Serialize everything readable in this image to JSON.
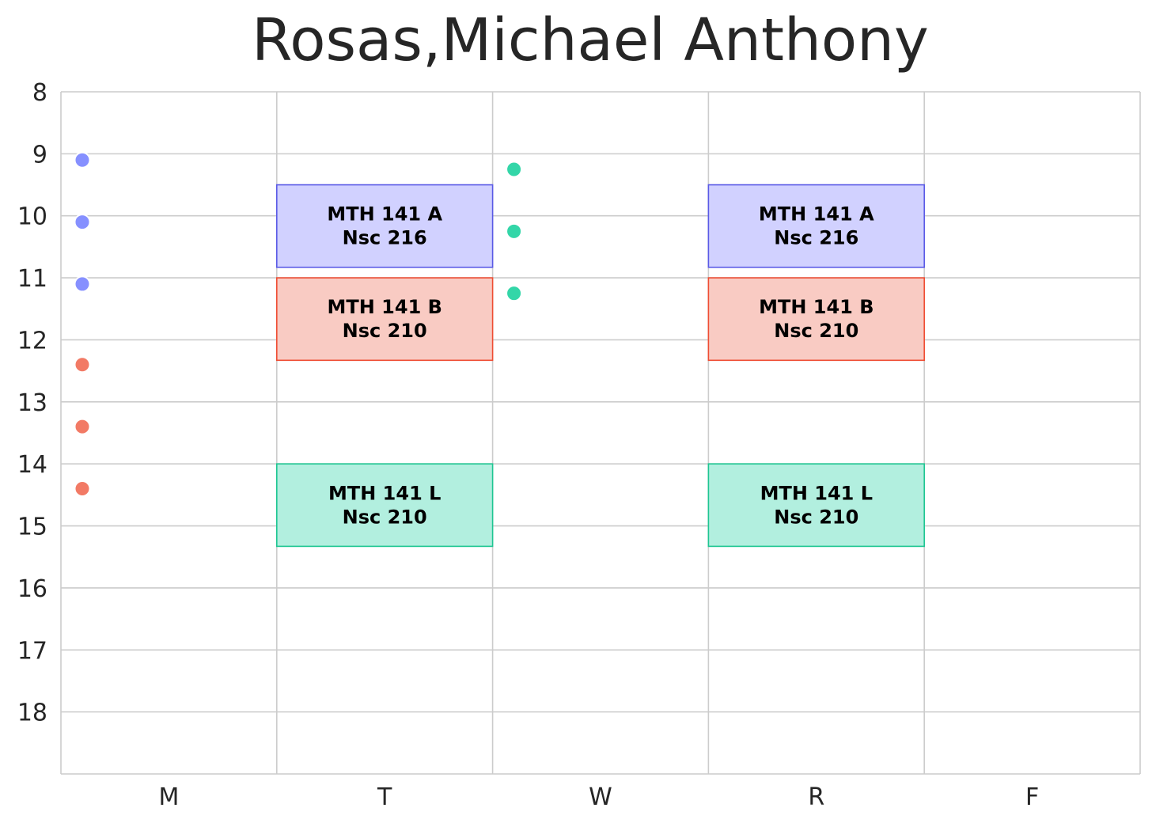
{
  "chart_data": {
    "type": "schedule",
    "title": "Rosas,Michael Anthony",
    "days": [
      "M",
      "T",
      "W",
      "R",
      "F"
    ],
    "hours": [
      8,
      9,
      10,
      11,
      12,
      13,
      14,
      15,
      16,
      17,
      18
    ],
    "ylim": [
      8,
      19
    ],
    "grid": true,
    "colors": {
      "A": {
        "fill": "#d1d1ff",
        "edge": "#5a5ae6",
        "dot": "#8690ff"
      },
      "B": {
        "fill": "#f9cbc3",
        "edge": "#ef4d33",
        "dot": "#f27a65"
      },
      "L": {
        "fill": "#b2efdf",
        "edge": "#1ec692",
        "dot": "#33d6a8"
      }
    },
    "blocks": [
      {
        "course": "MTH 141 A",
        "room": "Nsc 216",
        "day": "T",
        "start": 9.5,
        "end": 10.83,
        "color": "A"
      },
      {
        "course": "MTH 141 A",
        "room": "Nsc 216",
        "day": "R",
        "start": 9.5,
        "end": 10.83,
        "color": "A"
      },
      {
        "course": "MTH 141 B",
        "room": "Nsc 210",
        "day": "T",
        "start": 11.0,
        "end": 12.33,
        "color": "B"
      },
      {
        "course": "MTH 141 B",
        "room": "Nsc 210",
        "day": "R",
        "start": 11.0,
        "end": 12.33,
        "color": "B"
      },
      {
        "course": "MTH 141 L",
        "room": "Nsc 210",
        "day": "T",
        "start": 14.0,
        "end": 15.33,
        "color": "L"
      },
      {
        "course": "MTH 141 L",
        "room": "Nsc 210",
        "day": "R",
        "start": 14.0,
        "end": 15.33,
        "color": "L"
      }
    ],
    "markers": [
      {
        "day": "M",
        "time": 9.1,
        "color": "A"
      },
      {
        "day": "M",
        "time": 10.1,
        "color": "A"
      },
      {
        "day": "M",
        "time": 11.1,
        "color": "A"
      },
      {
        "day": "M",
        "time": 12.4,
        "color": "B"
      },
      {
        "day": "M",
        "time": 13.4,
        "color": "B"
      },
      {
        "day": "M",
        "time": 14.4,
        "color": "B"
      },
      {
        "day": "W",
        "time": 9.25,
        "color": "L"
      },
      {
        "day": "W",
        "time": 10.25,
        "color": "L"
      },
      {
        "day": "W",
        "time": 11.25,
        "color": "L"
      }
    ]
  }
}
